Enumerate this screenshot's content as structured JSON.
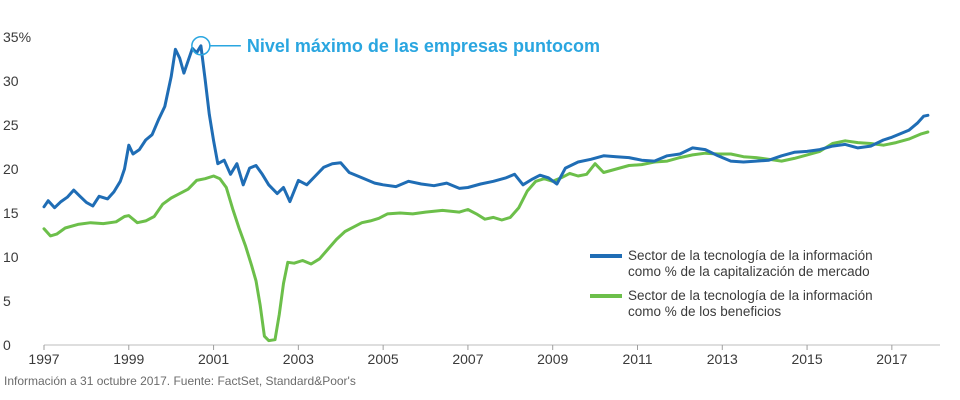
{
  "chart_data": {
    "type": "line",
    "title": "",
    "xlabel": "",
    "ylabel": "",
    "xlim": [
      1997,
      2017.9
    ],
    "ylim": [
      0,
      35
    ],
    "x_ticks": [
      "1997",
      "1999",
      "2001",
      "2003",
      "2005",
      "2007",
      "2009",
      "2011",
      "2013",
      "2015",
      "2017"
    ],
    "y_ticks": [
      "0",
      "5",
      "10",
      "15",
      "20",
      "25",
      "30",
      "35%"
    ],
    "annotation": {
      "text": "Nivel máximo de las empresas puntocom",
      "x": 2000.7,
      "y": 34
    },
    "legend_position": "right",
    "colors": {
      "market_cap": "#1f6db5",
      "earnings": "#6cbf4a",
      "annotation": "#2aa6e0"
    },
    "series": [
      {
        "name": "Sector de la tecnología de la información como % de la capitalización de mercado",
        "legend_lines": [
          "Sector de la tecnología de la información",
          "como % de la capitalización de mercado"
        ],
        "color": "#1f6db5",
        "points": [
          [
            1997.0,
            15.7
          ],
          [
            1997.1,
            16.4
          ],
          [
            1997.25,
            15.6
          ],
          [
            1997.4,
            16.3
          ],
          [
            1997.55,
            16.8
          ],
          [
            1997.7,
            17.6
          ],
          [
            1997.85,
            16.9
          ],
          [
            1998.0,
            16.2
          ],
          [
            1998.15,
            15.8
          ],
          [
            1998.3,
            16.9
          ],
          [
            1998.5,
            16.6
          ],
          [
            1998.65,
            17.4
          ],
          [
            1998.8,
            18.6
          ],
          [
            1998.9,
            20.0
          ],
          [
            1999.0,
            22.7
          ],
          [
            1999.1,
            21.7
          ],
          [
            1999.25,
            22.2
          ],
          [
            1999.4,
            23.3
          ],
          [
            1999.55,
            23.9
          ],
          [
            1999.7,
            25.6
          ],
          [
            1999.85,
            27.1
          ],
          [
            2000.0,
            30.5
          ],
          [
            2000.1,
            33.6
          ],
          [
            2000.2,
            32.6
          ],
          [
            2000.3,
            30.9
          ],
          [
            2000.4,
            32.3
          ],
          [
            2000.5,
            33.7
          ],
          [
            2000.6,
            33.2
          ],
          [
            2000.7,
            34.0
          ],
          [
            2000.8,
            30.2
          ],
          [
            2000.9,
            26.2
          ],
          [
            2001.0,
            23.2
          ],
          [
            2001.1,
            20.6
          ],
          [
            2001.25,
            21.0
          ],
          [
            2001.4,
            19.4
          ],
          [
            2001.55,
            20.6
          ],
          [
            2001.7,
            18.2
          ],
          [
            2001.85,
            20.1
          ],
          [
            2002.0,
            20.4
          ],
          [
            2002.15,
            19.4
          ],
          [
            2002.3,
            18.2
          ],
          [
            2002.5,
            17.2
          ],
          [
            2002.65,
            17.9
          ],
          [
            2002.8,
            16.3
          ],
          [
            2003.0,
            18.7
          ],
          [
            2003.2,
            18.2
          ],
          [
            2003.4,
            19.2
          ],
          [
            2003.6,
            20.2
          ],
          [
            2003.8,
            20.6
          ],
          [
            2004.0,
            20.7
          ],
          [
            2004.2,
            19.6
          ],
          [
            2004.5,
            19.0
          ],
          [
            2004.8,
            18.4
          ],
          [
            2005.0,
            18.2
          ],
          [
            2005.3,
            18.0
          ],
          [
            2005.6,
            18.6
          ],
          [
            2005.9,
            18.3
          ],
          [
            2006.2,
            18.1
          ],
          [
            2006.5,
            18.4
          ],
          [
            2006.8,
            17.8
          ],
          [
            2007.0,
            17.9
          ],
          [
            2007.3,
            18.3
          ],
          [
            2007.6,
            18.6
          ],
          [
            2007.9,
            19.0
          ],
          [
            2008.1,
            19.4
          ],
          [
            2008.3,
            18.2
          ],
          [
            2008.5,
            18.8
          ],
          [
            2008.7,
            19.3
          ],
          [
            2008.9,
            19.0
          ],
          [
            2009.1,
            18.3
          ],
          [
            2009.3,
            20.1
          ],
          [
            2009.6,
            20.8
          ],
          [
            2009.9,
            21.1
          ],
          [
            2010.2,
            21.5
          ],
          [
            2010.5,
            21.4
          ],
          [
            2010.8,
            21.3
          ],
          [
            2011.1,
            21.0
          ],
          [
            2011.4,
            20.9
          ],
          [
            2011.7,
            21.5
          ],
          [
            2012.0,
            21.7
          ],
          [
            2012.3,
            22.4
          ],
          [
            2012.6,
            22.2
          ],
          [
            2012.9,
            21.5
          ],
          [
            2013.2,
            20.9
          ],
          [
            2013.5,
            20.8
          ],
          [
            2013.8,
            20.9
          ],
          [
            2014.1,
            21.0
          ],
          [
            2014.4,
            21.5
          ],
          [
            2014.7,
            21.9
          ],
          [
            2015.0,
            22.0
          ],
          [
            2015.3,
            22.2
          ],
          [
            2015.6,
            22.6
          ],
          [
            2015.9,
            22.8
          ],
          [
            2016.2,
            22.4
          ],
          [
            2016.5,
            22.6
          ],
          [
            2016.8,
            23.3
          ],
          [
            2017.0,
            23.6
          ],
          [
            2017.2,
            24.0
          ],
          [
            2017.4,
            24.4
          ],
          [
            2017.6,
            25.2
          ],
          [
            2017.75,
            26.0
          ],
          [
            2017.85,
            26.1
          ]
        ]
      },
      {
        "name": "Sector de la tecnología de la información como % de los beneficios",
        "legend_lines": [
          "Sector de la tecnología de la información",
          "como % de los beneficios"
        ],
        "color": "#6cbf4a",
        "points": [
          [
            1997.0,
            13.2
          ],
          [
            1997.15,
            12.4
          ],
          [
            1997.3,
            12.6
          ],
          [
            1997.5,
            13.3
          ],
          [
            1997.8,
            13.7
          ],
          [
            1998.1,
            13.9
          ],
          [
            1998.4,
            13.8
          ],
          [
            1998.7,
            14.0
          ],
          [
            1998.9,
            14.6
          ],
          [
            1999.0,
            14.7
          ],
          [
            1999.2,
            13.9
          ],
          [
            1999.4,
            14.1
          ],
          [
            1999.6,
            14.6
          ],
          [
            1999.8,
            16.0
          ],
          [
            2000.0,
            16.7
          ],
          [
            2000.2,
            17.2
          ],
          [
            2000.4,
            17.7
          ],
          [
            2000.6,
            18.7
          ],
          [
            2000.8,
            18.9
          ],
          [
            2001.0,
            19.2
          ],
          [
            2001.15,
            18.9
          ],
          [
            2001.3,
            17.9
          ],
          [
            2001.45,
            15.5
          ],
          [
            2001.6,
            13.3
          ],
          [
            2001.75,
            11.3
          ],
          [
            2001.9,
            9.0
          ],
          [
            2002.0,
            7.3
          ],
          [
            2002.1,
            4.5
          ],
          [
            2002.2,
            1.0
          ],
          [
            2002.3,
            0.5
          ],
          [
            2002.45,
            0.6
          ],
          [
            2002.55,
            3.5
          ],
          [
            2002.65,
            7.0
          ],
          [
            2002.75,
            9.4
          ],
          [
            2002.9,
            9.3
          ],
          [
            2003.1,
            9.6
          ],
          [
            2003.3,
            9.2
          ],
          [
            2003.5,
            9.8
          ],
          [
            2003.7,
            10.9
          ],
          [
            2003.9,
            12.0
          ],
          [
            2004.1,
            12.9
          ],
          [
            2004.3,
            13.4
          ],
          [
            2004.5,
            13.9
          ],
          [
            2004.7,
            14.1
          ],
          [
            2004.9,
            14.4
          ],
          [
            2005.1,
            14.9
          ],
          [
            2005.4,
            15.0
          ],
          [
            2005.7,
            14.9
          ],
          [
            2006.0,
            15.1
          ],
          [
            2006.4,
            15.3
          ],
          [
            2006.8,
            15.1
          ],
          [
            2007.0,
            15.4
          ],
          [
            2007.2,
            14.9
          ],
          [
            2007.4,
            14.3
          ],
          [
            2007.6,
            14.5
          ],
          [
            2007.8,
            14.2
          ],
          [
            2008.0,
            14.5
          ],
          [
            2008.2,
            15.6
          ],
          [
            2008.4,
            17.5
          ],
          [
            2008.6,
            18.6
          ],
          [
            2008.8,
            18.9
          ],
          [
            2009.0,
            18.6
          ],
          [
            2009.2,
            19.0
          ],
          [
            2009.4,
            19.5
          ],
          [
            2009.6,
            19.2
          ],
          [
            2009.8,
            19.4
          ],
          [
            2010.0,
            20.6
          ],
          [
            2010.2,
            19.6
          ],
          [
            2010.5,
            20.0
          ],
          [
            2010.8,
            20.4
          ],
          [
            2011.1,
            20.5
          ],
          [
            2011.4,
            20.8
          ],
          [
            2011.7,
            20.9
          ],
          [
            2012.0,
            21.3
          ],
          [
            2012.3,
            21.6
          ],
          [
            2012.6,
            21.8
          ],
          [
            2012.9,
            21.7
          ],
          [
            2013.2,
            21.7
          ],
          [
            2013.5,
            21.4
          ],
          [
            2013.8,
            21.3
          ],
          [
            2014.1,
            21.1
          ],
          [
            2014.4,
            20.9
          ],
          [
            2014.7,
            21.2
          ],
          [
            2015.0,
            21.6
          ],
          [
            2015.3,
            22.0
          ],
          [
            2015.6,
            22.9
          ],
          [
            2015.9,
            23.2
          ],
          [
            2016.2,
            23.0
          ],
          [
            2016.5,
            22.9
          ],
          [
            2016.8,
            22.7
          ],
          [
            2017.1,
            23.0
          ],
          [
            2017.4,
            23.4
          ],
          [
            2017.7,
            24.0
          ],
          [
            2017.85,
            24.2
          ]
        ]
      }
    ]
  },
  "footer": {
    "source": "Información a 31 octubre 2017. Fuente: FactSet, Standard&Poor's"
  }
}
